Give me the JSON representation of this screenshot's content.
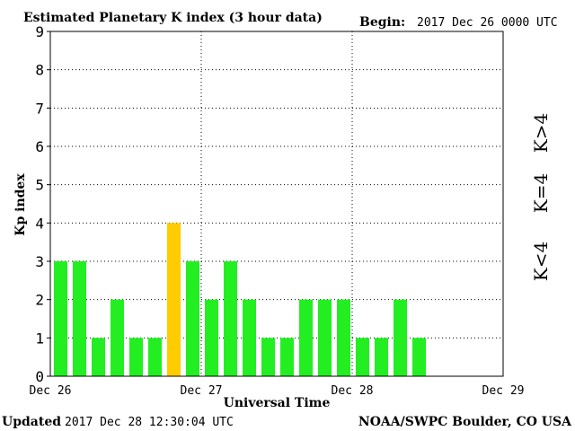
{
  "header": {
    "title": "Estimated Planetary K index (3 hour data)",
    "begin_label": "Begin:",
    "begin_value": "2017 Dec 26 0000 UTC"
  },
  "footer": {
    "updated_label": "Updated",
    "updated_value": "2017 Dec 28 12:30:04 UTC",
    "credit": "NOAA/SWPC Boulder, CO USA"
  },
  "legend": {
    "items": [
      {
        "label": "K<4",
        "color": "#22ee22"
      },
      {
        "label": "K=4",
        "color": "#ffcc00"
      },
      {
        "label": "K>4",
        "color": "#ee2222"
      }
    ]
  },
  "chart_data": {
    "type": "bar",
    "title": "Estimated Planetary K index (3 hour data)",
    "xlabel": "Universal Time",
    "ylabel": "Kp index",
    "ylim": [
      0,
      9
    ],
    "yticks": [
      0,
      1,
      2,
      3,
      4,
      5,
      6,
      7,
      8,
      9
    ],
    "xticks": [
      "Dec 26",
      "Dec 27",
      "Dec 28",
      "Dec 29"
    ],
    "slots_total": 24,
    "grid": true,
    "legend_placement": "right",
    "values": [
      3,
      3,
      1,
      2,
      1,
      1,
      4,
      3,
      2,
      3,
      2,
      1,
      1,
      2,
      2,
      2,
      1,
      1,
      2,
      1
    ],
    "colors": {
      "below4": "#22ee22",
      "equal4": "#ffcc00",
      "above4": "#ee2222"
    }
  }
}
